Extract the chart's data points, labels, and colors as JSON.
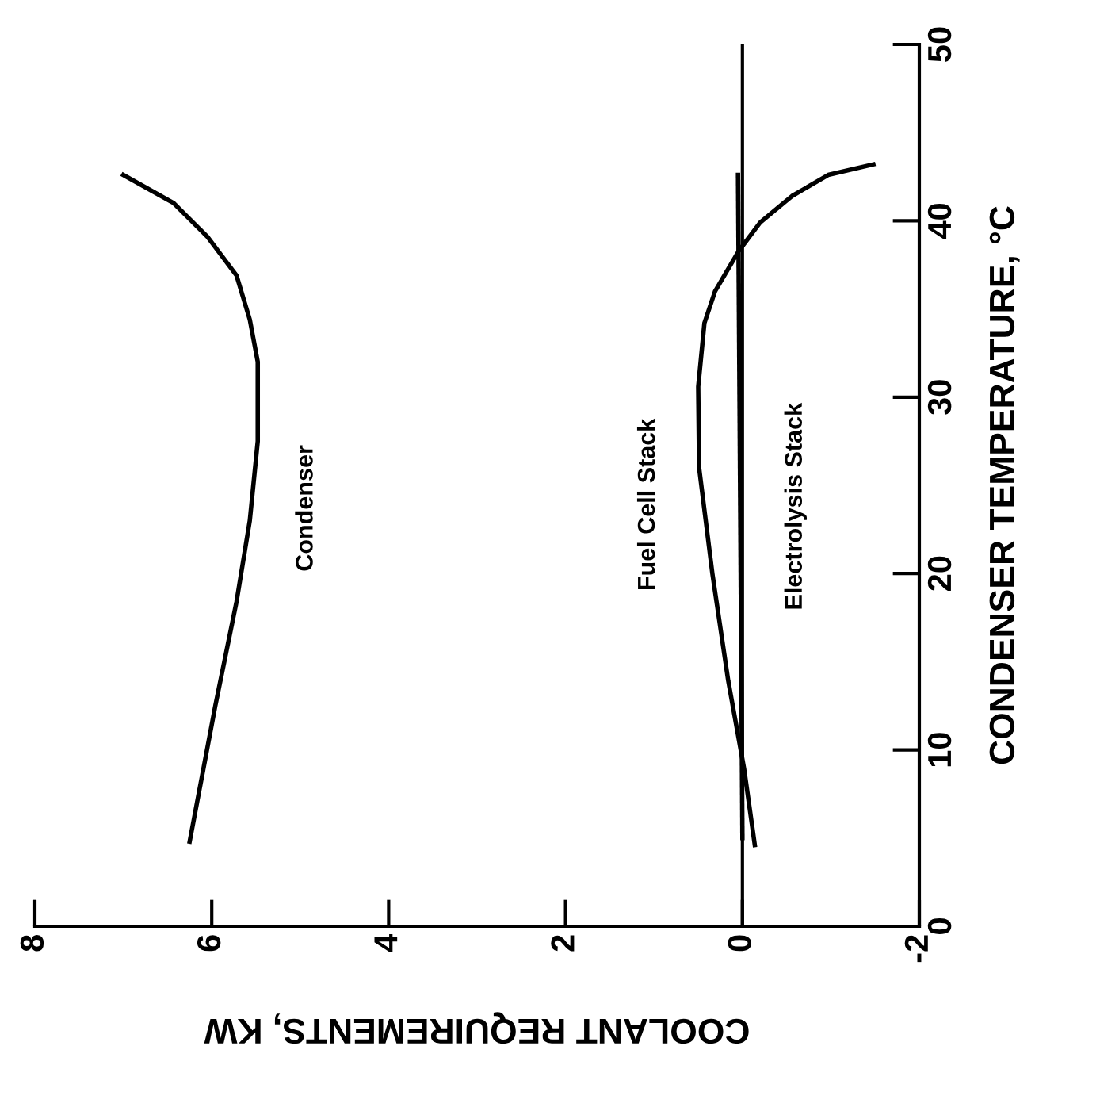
{
  "chart_data": {
    "type": "line",
    "xlabel": "COOLANT REQUIREMENTS, KW",
    "ylabel": "CONDENSER TEMPERATURE, °C",
    "xlim": [
      8,
      -2
    ],
    "xticks": [
      8,
      6,
      4,
      2,
      0,
      -2
    ],
    "ylim": [
      0,
      50
    ],
    "yticks": [
      0,
      10,
      20,
      30,
      40,
      50
    ],
    "series": [
      {
        "name": "Condenser",
        "color": "#000000",
        "x": [
          6.25,
          5.96,
          5.72,
          5.57,
          5.48,
          5.48,
          5.57,
          5.72,
          6.05,
          6.43,
          7.0
        ],
        "values": [
          4.8,
          12.5,
          18.4,
          23.0,
          27.5,
          32.0,
          34.4,
          36.9,
          39.1,
          41.0,
          42.6
        ]
      },
      {
        "name": "Fuel Cell Stack",
        "color": "#000000",
        "x": [
          -0.14,
          -0.02,
          0.16,
          0.34,
          0.49,
          0.5,
          0.43,
          0.31,
          0.04,
          -0.2,
          -0.56,
          -0.97,
          -1.48
        ],
        "values": [
          4.6,
          8.9,
          13.9,
          20.0,
          26.0,
          30.6,
          34.2,
          36.0,
          38.3,
          39.9,
          41.4,
          42.6,
          43.2
        ]
      },
      {
        "name": "Electrolysis Stack",
        "color": "#000000",
        "x": [
          0,
          0.05
        ],
        "values": [
          5,
          42.6
        ]
      }
    ],
    "ref_lines": [
      {
        "axis": "x",
        "value": 0,
        "color": "#000000"
      }
    ],
    "grid": false,
    "legend": false,
    "marker": "none",
    "line_style": "solid"
  }
}
